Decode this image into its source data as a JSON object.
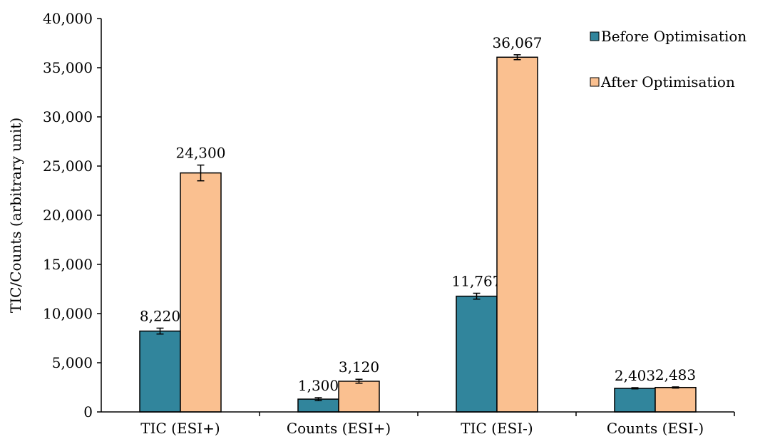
{
  "chart_data": {
    "type": "bar",
    "title": "",
    "xlabel": "",
    "ylabel": "TIC/Counts (arbitrary unit)",
    "ylim": [
      0,
      40000
    ],
    "yticks": [
      "0",
      "5,000",
      "10,000",
      "15,000",
      "20,000",
      "25,000",
      "30,000",
      "35,000",
      "40,000"
    ],
    "categories": [
      "TIC (ESI+)",
      "Counts (ESI+)",
      "TIC (ESI-)",
      "Counts (ESI-)"
    ],
    "grid": false,
    "legend_position": "top-right",
    "series": [
      {
        "name": "Before Optimisation",
        "color": "#31859c",
        "values": [
          8220,
          1300,
          11767,
          2403
        ],
        "errors": [
          300,
          150,
          300,
          60
        ],
        "data_labels": [
          "8,220",
          "1,300",
          "11,767",
          "2,403"
        ]
      },
      {
        "name": "After Optimisation",
        "color": "#fac090",
        "values": [
          24300,
          3120,
          36067,
          2483
        ],
        "errors": [
          800,
          200,
          250,
          60
        ],
        "data_labels": [
          "24,300",
          "3,120",
          "36,067",
          "2,483"
        ]
      }
    ]
  }
}
